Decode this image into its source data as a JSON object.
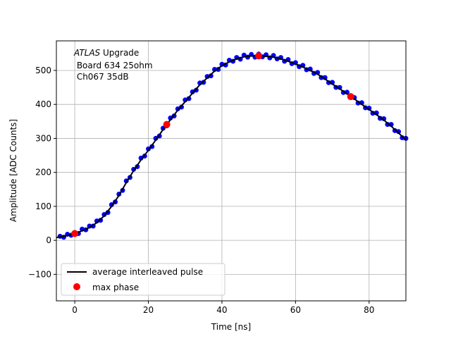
{
  "chart_data": {
    "type": "scatter",
    "xlabel": "Time [ns]",
    "ylabel": "Amplitude [ADC Counts]",
    "xlim": [
      -5,
      90
    ],
    "ylim": [
      -178,
      587
    ],
    "grid": true,
    "xticks": [
      0,
      20,
      40,
      60,
      80
    ],
    "yticks": [
      -100,
      0,
      100,
      200,
      300,
      400,
      500
    ],
    "annotation": {
      "italic": "ATLAS",
      "rest": " Upgrade",
      "line2": " Board 634 25ohm",
      "line3": " Ch067 35dB"
    },
    "legend": {
      "placement": "lower-left",
      "entries": [
        "average interleaved pulse",
        "max phase"
      ]
    },
    "colors": {
      "samples": "#0000ff",
      "average": "#000000",
      "max_phase": "#ff0000",
      "grid": "#b0b0b0"
    },
    "samples": {
      "x_start": -4,
      "x_step": 1,
      "y": [
        12,
        9,
        18,
        15,
        23,
        20,
        33,
        31,
        42,
        42,
        57,
        59,
        76,
        82,
        105,
        113,
        136,
        147,
        175,
        185,
        209,
        217,
        242,
        248,
        269,
        276,
        300,
        307,
        330,
        337,
        360,
        366,
        387,
        392,
        413,
        417,
        437,
        442,
        463,
        465,
        482,
        484,
        503,
        503,
        518,
        516,
        530,
        527,
        538,
        533,
        545,
        539,
        547,
        539,
        548,
        540,
        546,
        537,
        544,
        534,
        538,
        527,
        532,
        520,
        523,
        511,
        515,
        502,
        504,
        491,
        494,
        479,
        479,
        464,
        465,
        450,
        450,
        435,
        436,
        420,
        420,
        404,
        405,
        390,
        389,
        374,
        375,
        359,
        358,
        341,
        341,
        323,
        320,
        302,
        300
      ]
    },
    "series": [
      {
        "name": "average interleaved pulse",
        "x": [
          -5,
          -4,
          -2,
          0,
          2,
          4,
          6,
          8,
          10,
          12,
          14,
          16,
          18,
          20,
          22,
          24,
          26,
          28,
          30,
          32,
          34,
          36,
          38,
          40,
          42,
          44,
          46,
          48,
          50,
          52,
          54,
          56,
          58,
          60,
          62,
          64,
          66,
          68,
          70,
          72,
          74,
          76,
          78,
          80,
          82,
          84,
          86,
          88,
          90
        ],
        "y": [
          8,
          10,
          14,
          20,
          28,
          38,
          52,
          72,
          100,
          132,
          170,
          205,
          237,
          265,
          295,
          326,
          355,
          383,
          408,
          433,
          458,
          478,
          498,
          514,
          525,
          534,
          540,
          543,
          543,
          542,
          539,
          534,
          527,
          519,
          510,
          500,
          489,
          475,
          460,
          446,
          431,
          416,
          400,
          385,
          370,
          354,
          336,
          316,
          295
        ]
      },
      {
        "name": "max phase",
        "x": [
          0,
          25,
          50,
          75
        ],
        "y": [
          20,
          341,
          543,
          423
        ]
      }
    ]
  }
}
